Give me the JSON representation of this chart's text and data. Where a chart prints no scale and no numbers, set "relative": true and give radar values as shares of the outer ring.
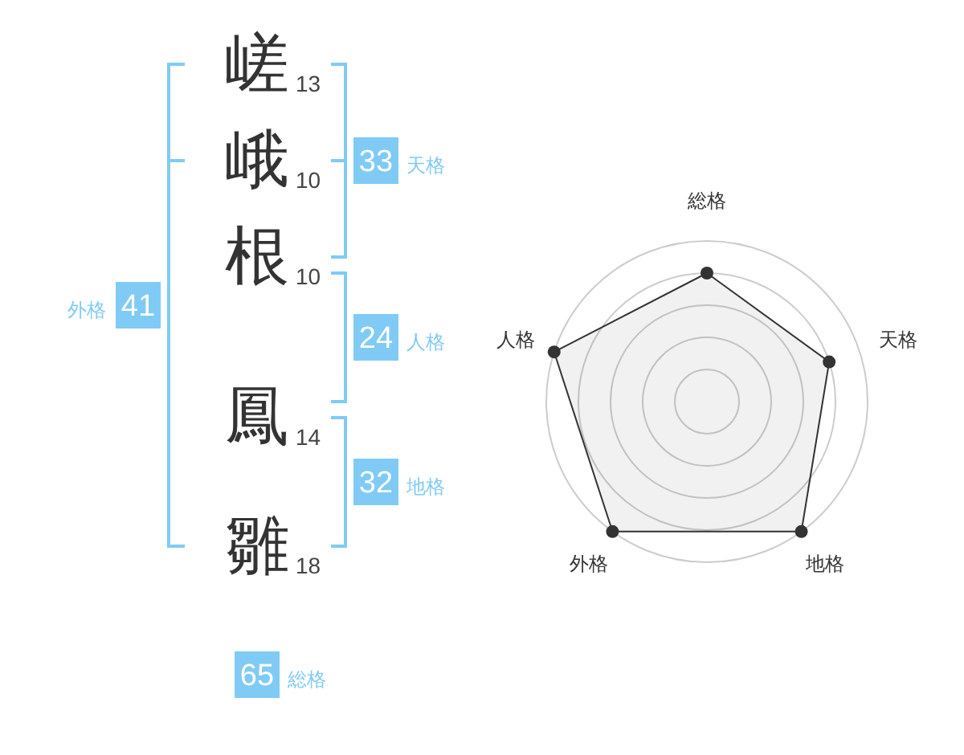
{
  "chart_data": [
    {
      "type": "other",
      "categories": [
        "嵯",
        "峨",
        "根",
        "鳳",
        "雛"
      ],
      "values": [
        13,
        10,
        10,
        14,
        18
      ],
      "data_labels": true,
      "annotations": [
        "33",
        "天格",
        "24",
        "人格",
        "32",
        "地格",
        "41",
        "外格",
        "65",
        "総格"
      ]
    },
    {
      "type": "radar",
      "categories": [
        "総格",
        "天格",
        "地格",
        "外格",
        "人格"
      ],
      "relative": true,
      "grid": true,
      "marker": "circle",
      "series": [
        {
          "color": "#333333",
          "values": [
            0.8,
            0.8,
            1,
            1,
            1
          ]
        }
      ]
    }
  ]
}
